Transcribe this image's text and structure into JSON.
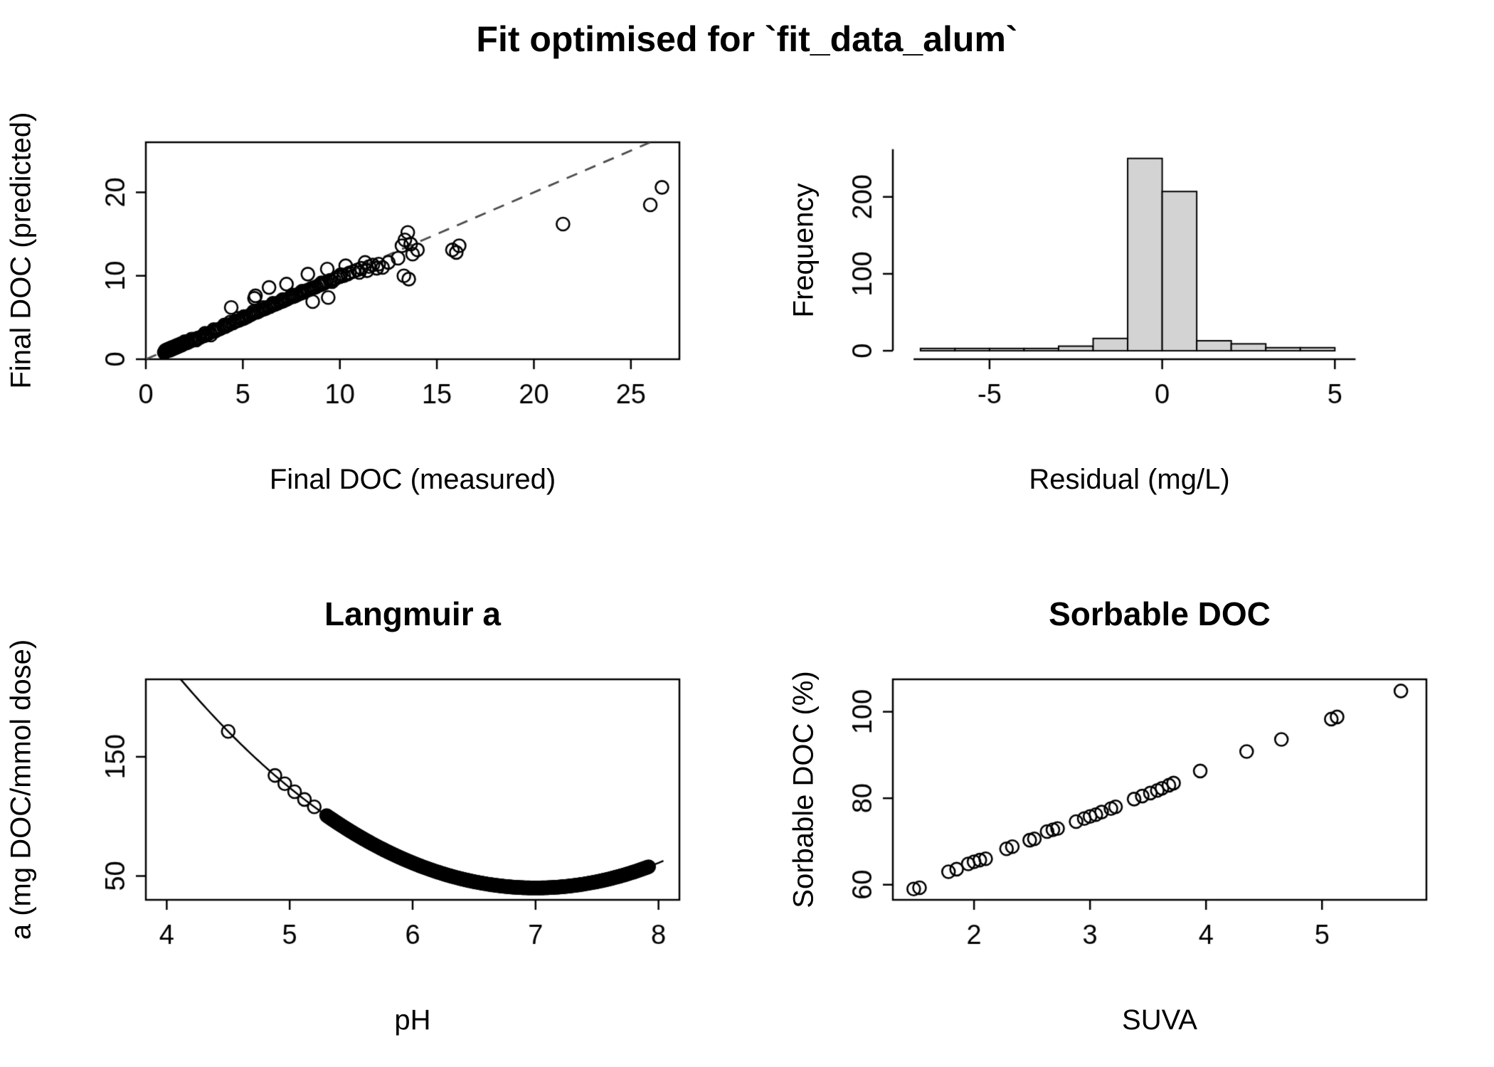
{
  "page": {
    "title": "Fit optimised for `fit_data_alum`"
  },
  "colors": {
    "foreground": "#000000",
    "histogram_fill": "#d3d3d3",
    "dashed_line": "#4d4d4d",
    "background": "#ffffff"
  },
  "chart_data": [
    {
      "id": "fit",
      "type": "scatter",
      "title": "",
      "xlabel": "Final DOC (measured)",
      "ylabel": "Final DOC (predicted)",
      "xlim": [
        0,
        27.5
      ],
      "ylim": [
        0,
        26
      ],
      "xticks": [
        0,
        5,
        10,
        15,
        20,
        25
      ],
      "yticks": [
        0,
        10,
        20
      ],
      "box": true,
      "identity_line": {
        "style": "dashed",
        "from": [
          0,
          0
        ],
        "to": [
          27.5,
          27.5
        ]
      },
      "points": [
        [
          0.95,
          0.8
        ],
        [
          1.0,
          0.9
        ],
        [
          1.0,
          1.05
        ],
        [
          1.05,
          0.95
        ],
        [
          1.05,
          1.1
        ],
        [
          1.1,
          1.0
        ],
        [
          1.1,
          1.15
        ],
        [
          1.15,
          1.05
        ],
        [
          1.15,
          1.2
        ],
        [
          1.2,
          1.05
        ],
        [
          1.2,
          1.25
        ],
        [
          1.25,
          1.1
        ],
        [
          1.25,
          1.3
        ],
        [
          1.3,
          1.15
        ],
        [
          1.3,
          1.35
        ],
        [
          1.35,
          1.2
        ],
        [
          1.35,
          1.4
        ],
        [
          1.4,
          1.25
        ],
        [
          1.4,
          1.45
        ],
        [
          1.45,
          1.3
        ],
        [
          1.5,
          1.35
        ],
        [
          1.5,
          1.55
        ],
        [
          1.55,
          1.4
        ],
        [
          1.6,
          1.45
        ],
        [
          1.6,
          1.65
        ],
        [
          1.65,
          1.5
        ],
        [
          1.7,
          1.55
        ],
        [
          1.7,
          1.75
        ],
        [
          1.75,
          1.6
        ],
        [
          1.8,
          1.65
        ],
        [
          1.8,
          1.85
        ],
        [
          1.85,
          1.7
        ],
        [
          1.9,
          1.75
        ],
        [
          1.95,
          1.85
        ],
        [
          2.0,
          1.9
        ],
        [
          2.0,
          2.1
        ],
        [
          2.1,
          1.95
        ],
        [
          2.15,
          2.1
        ],
        [
          2.2,
          2.05
        ],
        [
          2.3,
          2.15
        ],
        [
          2.35,
          2.4
        ],
        [
          2.45,
          2.3
        ],
        [
          2.55,
          2.45
        ],
        [
          2.6,
          2.3
        ],
        [
          2.7,
          2.55
        ],
        [
          2.8,
          2.6
        ],
        [
          2.9,
          2.75
        ],
        [
          3.0,
          2.8
        ],
        [
          3.05,
          3.1
        ],
        [
          3.1,
          2.9
        ],
        [
          3.2,
          3.05
        ],
        [
          3.3,
          3.15
        ],
        [
          3.35,
          2.9
        ],
        [
          3.45,
          3.3
        ],
        [
          3.5,
          3.55
        ],
        [
          3.6,
          3.4
        ],
        [
          3.7,
          3.55
        ],
        [
          3.8,
          3.6
        ],
        [
          3.9,
          3.75
        ],
        [
          4.0,
          3.85
        ],
        [
          4.05,
          4.1
        ],
        [
          4.1,
          3.9
        ],
        [
          4.2,
          4.05
        ],
        [
          4.3,
          4.15
        ],
        [
          4.35,
          4.45
        ],
        [
          4.4,
          6.2
        ],
        [
          4.5,
          4.35
        ],
        [
          4.6,
          4.5
        ],
        [
          4.7,
          4.6
        ],
        [
          4.75,
          4.9
        ],
        [
          4.8,
          4.65
        ],
        [
          4.9,
          4.8
        ],
        [
          5.0,
          4.85
        ],
        [
          5.05,
          5.1
        ],
        [
          5.1,
          4.95
        ],
        [
          5.2,
          5.05
        ],
        [
          5.3,
          5.2
        ],
        [
          5.4,
          5.3
        ],
        [
          5.5,
          5.45
        ],
        [
          5.55,
          5.7
        ],
        [
          5.6,
          7.3
        ],
        [
          5.65,
          7.6
        ],
        [
          5.7,
          5.6
        ],
        [
          5.8,
          5.7
        ],
        [
          5.9,
          5.85
        ],
        [
          6.0,
          5.95
        ],
        [
          6.05,
          6.2
        ],
        [
          6.1,
          6.0
        ],
        [
          6.2,
          6.1
        ],
        [
          6.3,
          6.25
        ],
        [
          6.35,
          8.6
        ],
        [
          6.4,
          6.3
        ],
        [
          6.5,
          6.45
        ],
        [
          6.55,
          6.7
        ],
        [
          6.6,
          6.5
        ],
        [
          6.7,
          6.6
        ],
        [
          6.8,
          6.7
        ],
        [
          6.9,
          6.85
        ],
        [
          7.0,
          6.9
        ],
        [
          7.05,
          7.15
        ],
        [
          7.1,
          7.0
        ],
        [
          7.2,
          7.1
        ],
        [
          7.25,
          9.0
        ],
        [
          7.3,
          7.2
        ],
        [
          7.4,
          7.35
        ],
        [
          7.5,
          7.45
        ],
        [
          7.55,
          7.7
        ],
        [
          7.6,
          7.5
        ],
        [
          7.7,
          7.6
        ],
        [
          7.8,
          7.7
        ],
        [
          7.9,
          7.85
        ],
        [
          8.0,
          7.9
        ],
        [
          8.05,
          8.15
        ],
        [
          8.1,
          8.0
        ],
        [
          8.2,
          8.1
        ],
        [
          8.3,
          8.25
        ],
        [
          8.35,
          10.2
        ],
        [
          8.4,
          8.3
        ],
        [
          8.5,
          8.45
        ],
        [
          8.6,
          6.9
        ],
        [
          8.6,
          8.55
        ],
        [
          8.7,
          8.6
        ],
        [
          8.8,
          8.7
        ],
        [
          8.9,
          8.85
        ],
        [
          9.0,
          8.9
        ],
        [
          9.05,
          9.15
        ],
        [
          9.1,
          9.0
        ],
        [
          9.2,
          9.1
        ],
        [
          9.3,
          9.25
        ],
        [
          9.35,
          10.8
        ],
        [
          9.4,
          7.4
        ],
        [
          9.5,
          9.45
        ],
        [
          9.6,
          9.3
        ],
        [
          9.7,
          9.55
        ],
        [
          9.8,
          9.7
        ],
        [
          9.9,
          9.85
        ],
        [
          10.0,
          9.9
        ],
        [
          10.05,
          10.15
        ],
        [
          10.2,
          10.0
        ],
        [
          10.3,
          11.2
        ],
        [
          10.4,
          10.2
        ],
        [
          10.5,
          10.35
        ],
        [
          10.7,
          10.5
        ],
        [
          10.9,
          10.7
        ],
        [
          11.0,
          10.4
        ],
        [
          11.1,
          10.9
        ],
        [
          11.3,
          11.6
        ],
        [
          11.4,
          10.6
        ],
        [
          11.5,
          11.1
        ],
        [
          11.7,
          11.3
        ],
        [
          11.9,
          10.9
        ],
        [
          12.0,
          11.4
        ],
        [
          12.2,
          11.0
        ],
        [
          12.5,
          11.6
        ],
        [
          13.0,
          12.1
        ],
        [
          13.2,
          13.6
        ],
        [
          13.35,
          14.3
        ],
        [
          13.5,
          15.2
        ],
        [
          13.55,
          9.6
        ],
        [
          13.65,
          13.8
        ],
        [
          13.75,
          12.6
        ],
        [
          13.3,
          10.0
        ],
        [
          14.0,
          13.1
        ],
        [
          15.8,
          13.1
        ],
        [
          16.0,
          12.8
        ],
        [
          16.15,
          13.6
        ],
        [
          21.5,
          16.2
        ],
        [
          26.0,
          18.5
        ],
        [
          26.6,
          20.6
        ]
      ]
    },
    {
      "id": "residuals",
      "type": "histogram",
      "title": "",
      "xlabel": "Residual (mg/L)",
      "ylabel": "Frequency",
      "xlim": [
        -7.8,
        5.9
      ],
      "ylim": [
        -11,
        271
      ],
      "xticks": [
        -5,
        0,
        5
      ],
      "yticks": [
        0,
        100,
        200
      ],
      "bin_start": -7,
      "bin_width": 1,
      "counts": [
        3,
        3,
        3,
        3,
        6,
        16,
        250,
        207,
        13,
        9,
        4,
        4
      ],
      "axis_x_span": [
        -7.2,
        5.6
      ],
      "axis_y_span": [
        0,
        262
      ]
    },
    {
      "id": "langmuir",
      "type": "curve-scatter",
      "title": "Langmuir a",
      "xlabel": "pH",
      "ylabel": "a (mg DOC/mmol dose)",
      "xlim": [
        3.83,
        8.17
      ],
      "ylim": [
        30,
        215
      ],
      "xticks": [
        4,
        5,
        6,
        7,
        8
      ],
      "yticks": [
        50,
        150
      ],
      "box": true,
      "curve": {
        "form": "quadratic",
        "min": 40,
        "coef": 21,
        "vertex": 7,
        "x_from": 4.0,
        "x_to": 8.05
      },
      "dense_points": {
        "x_from": 5.3,
        "x_to": 7.92,
        "count": 320
      },
      "sparse_points_x": [
        4.5,
        4.88,
        4.96,
        5.04,
        5.12,
        5.2
      ]
    },
    {
      "id": "sorbable",
      "type": "scatter",
      "title": "Sorbable DOC",
      "xlabel": "SUVA",
      "ylabel": "Sorbable DOC (%)",
      "xlim": [
        1.3,
        5.9
      ],
      "ylim": [
        56.5,
        107.5
      ],
      "xticks": [
        2,
        3,
        4,
        5
      ],
      "yticks": [
        60,
        80,
        100
      ],
      "box": true,
      "points": [
        [
          1.48,
          59
        ],
        [
          1.53,
          59.3
        ],
        [
          1.78,
          63
        ],
        [
          1.85,
          63.6
        ],
        [
          1.95,
          64.8
        ],
        [
          2.0,
          65.3
        ],
        [
          2.05,
          65.7
        ],
        [
          2.1,
          66
        ],
        [
          2.28,
          68.3
        ],
        [
          2.33,
          68.8
        ],
        [
          2.48,
          70.3
        ],
        [
          2.52,
          70.6
        ],
        [
          2.63,
          72.3
        ],
        [
          2.68,
          72.7
        ],
        [
          2.72,
          73
        ],
        [
          2.88,
          74.6
        ],
        [
          2.95,
          75.3
        ],
        [
          3.0,
          75.8
        ],
        [
          3.05,
          76.2
        ],
        [
          3.1,
          76.8
        ],
        [
          3.18,
          77.6
        ],
        [
          3.22,
          78
        ],
        [
          3.38,
          79.8
        ],
        [
          3.45,
          80.5
        ],
        [
          3.52,
          81.2
        ],
        [
          3.58,
          81.8
        ],
        [
          3.62,
          82.3
        ],
        [
          3.68,
          83
        ],
        [
          3.72,
          83.5
        ],
        [
          3.95,
          86.3
        ],
        [
          4.35,
          90.8
        ],
        [
          4.65,
          93.6
        ],
        [
          5.08,
          98.3
        ],
        [
          5.13,
          98.8
        ],
        [
          5.68,
          104.8
        ]
      ]
    }
  ]
}
